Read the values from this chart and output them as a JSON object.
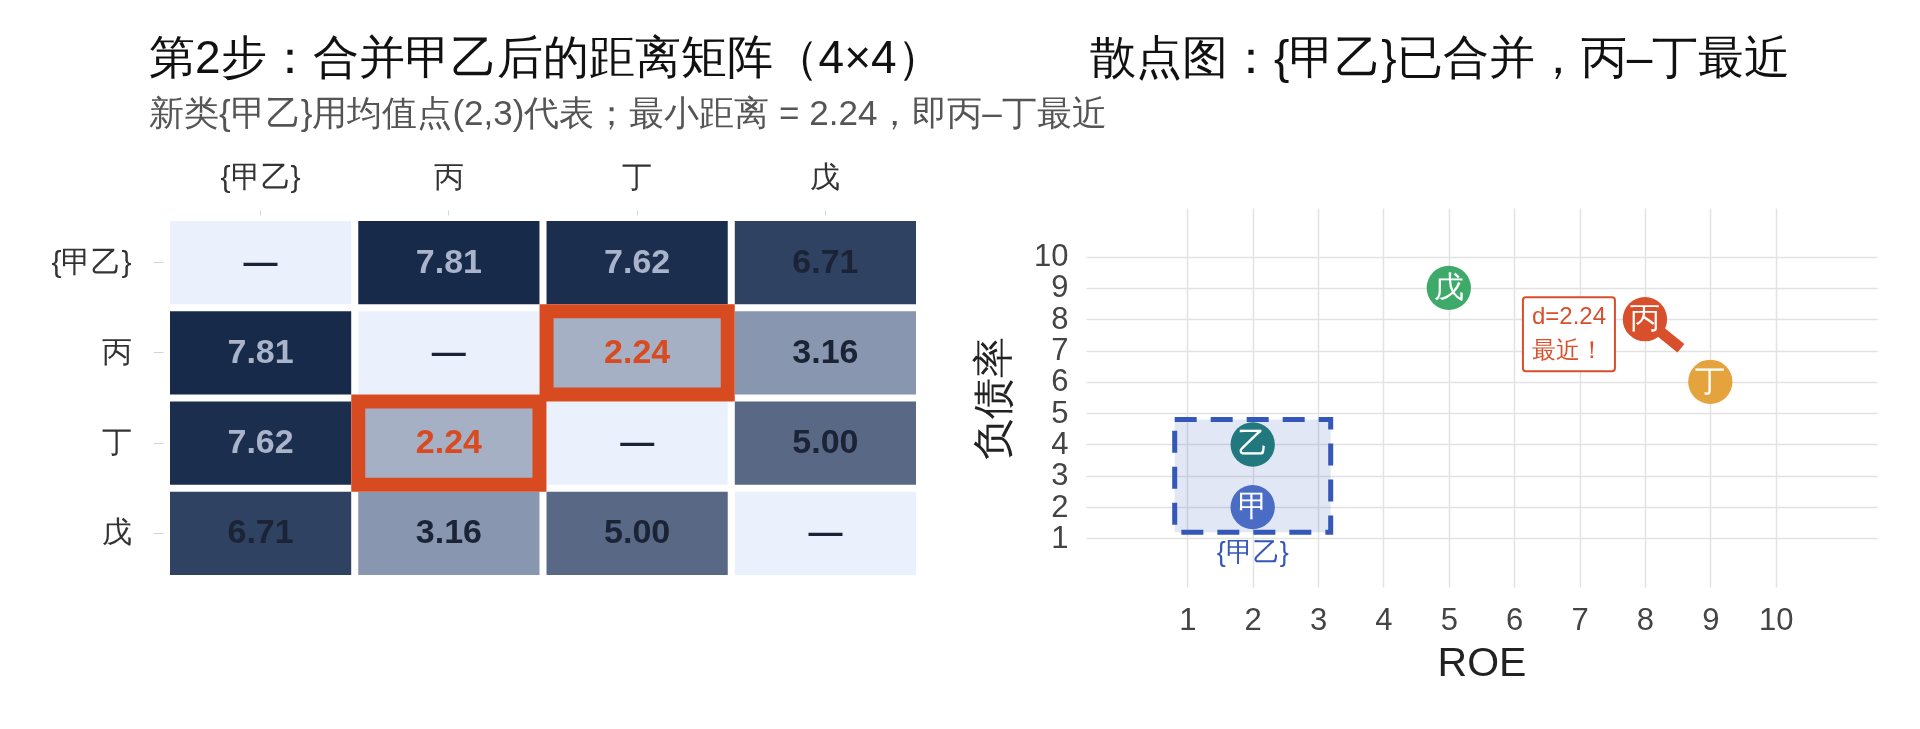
{
  "chart_data": [
    {
      "type": "heatmap",
      "title": "第2步：合并甲乙后的距离矩阵（4×4）",
      "subtitle": "新类{甲乙}用均值点(2,3)代表；最小距离 = 2.24，即丙–丁最近",
      "categories": [
        "{甲乙}",
        "丙",
        "丁",
        "戊"
      ],
      "y_categories": [
        "{甲乙}",
        "丙",
        "丁",
        "戊"
      ],
      "cells": [
        [
          null,
          7.81,
          7.62,
          6.71
        ],
        [
          7.81,
          null,
          2.24,
          3.16
        ],
        [
          7.62,
          2.24,
          null,
          5.0
        ],
        [
          6.71,
          3.16,
          5.0,
          null
        ]
      ],
      "cell_labels": [
        [
          "—",
          "7.81",
          "7.62",
          "6.71"
        ],
        [
          "7.81",
          "—",
          "2.24",
          "3.16"
        ],
        [
          "7.62",
          "2.24",
          "—",
          "5.00"
        ],
        [
          "6.71",
          "3.16",
          "5.00",
          "—"
        ]
      ]
    },
    {
      "type": "scatter",
      "title": "散点图：{甲乙}已合并，丙–丁最近",
      "xlabel": "ROE",
      "ylabel": "负债率",
      "xlim": [
        -0.55,
        11.55
      ],
      "ylim": [
        -0.55,
        11.55
      ],
      "xticks": [
        1,
        2,
        3,
        4,
        5,
        6,
        7,
        8,
        9,
        10
      ],
      "yticks": [
        1,
        2,
        3,
        4,
        5,
        6,
        7,
        8,
        9,
        10
      ],
      "grid": true,
      "marker": "circle",
      "series": [
        {
          "name": "甲",
          "color": "#4a6cc4",
          "x": [
            2
          ],
          "values": [
            2
          ]
        },
        {
          "name": "乙",
          "color": "#21797f",
          "x": [
            2
          ],
          "values": [
            4
          ]
        },
        {
          "name": "丙",
          "color": "#d84f2c",
          "x": [
            8
          ],
          "values": [
            8
          ]
        },
        {
          "name": "丁",
          "color": "#e5a33e",
          "x": [
            9
          ],
          "values": [
            6
          ]
        },
        {
          "name": "戊",
          "color": "#3eaa6a",
          "x": [
            5
          ],
          "values": [
            9
          ]
        }
      ],
      "annotations": [
        "{甲乙}",
        {
          "text": "d=2.24\n最近！",
          "x": 8,
          "y": 8
        }
      ]
    }
  ]
}
